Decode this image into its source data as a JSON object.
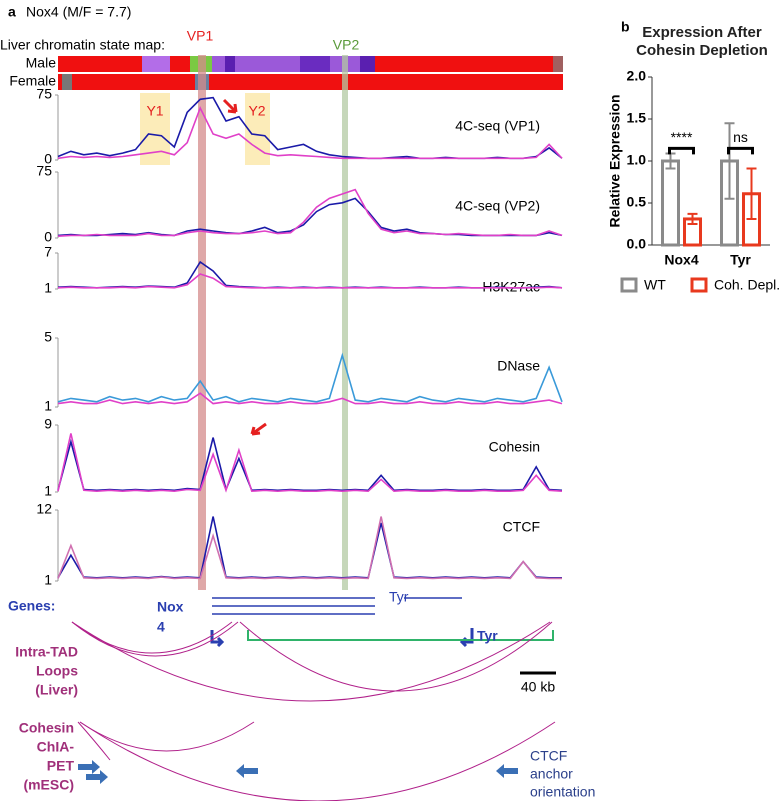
{
  "chart_data": [
    {
      "type": "line",
      "title": "4C-seq (VP1)",
      "ylim": [
        0,
        75
      ],
      "yticks": [
        0,
        75
      ],
      "series": [
        {
          "color": "#1a1aa8",
          "values": [
            4,
            10,
            6,
            8,
            5,
            8,
            12,
            30,
            28,
            15,
            55,
            70,
            72,
            45,
            50,
            30,
            28,
            12,
            15,
            18,
            10,
            6,
            4,
            3,
            2,
            2,
            3,
            4,
            2,
            2,
            3,
            2,
            2,
            2,
            3,
            2,
            2,
            4,
            14,
            2
          ]
        },
        {
          "color": "#e040c8",
          "values": [
            2,
            4,
            3,
            4,
            3,
            4,
            6,
            8,
            10,
            6,
            20,
            60,
            30,
            25,
            30,
            18,
            8,
            5,
            6,
            5,
            4,
            3,
            2,
            2,
            2,
            2,
            2,
            2,
            2,
            2,
            2,
            2,
            2,
            2,
            2,
            2,
            2,
            3,
            18,
            2
          ]
        }
      ]
    },
    {
      "type": "line",
      "title": "4C-seq (VP2)",
      "ylim": [
        0,
        75
      ],
      "yticks": [
        0,
        75
      ],
      "series": [
        {
          "color": "#1a1aa8",
          "values": [
            3,
            4,
            3,
            3,
            4,
            5,
            4,
            6,
            4,
            3,
            8,
            10,
            8,
            6,
            5,
            8,
            12,
            6,
            8,
            15,
            30,
            38,
            40,
            45,
            30,
            12,
            8,
            10,
            6,
            5,
            4,
            4,
            3,
            3,
            3,
            3,
            3,
            3,
            6,
            3
          ]
        },
        {
          "color": "#e040c8",
          "values": [
            2,
            3,
            3,
            4,
            3,
            3,
            3,
            5,
            3,
            3,
            6,
            8,
            6,
            5,
            5,
            6,
            8,
            5,
            6,
            18,
            35,
            45,
            50,
            55,
            28,
            10,
            6,
            8,
            5,
            5,
            4,
            5,
            4,
            3,
            3,
            4,
            3,
            3,
            8,
            3
          ]
        }
      ]
    },
    {
      "type": "line",
      "title": "H3K27ac",
      "ylim": [
        1,
        7
      ],
      "yticks": [
        1,
        7
      ],
      "series": [
        {
          "color": "#1a1aa8",
          "values": [
            1.3,
            1.4,
            1.3,
            1.2,
            1.3,
            1.4,
            1.3,
            1.5,
            1.4,
            1.3,
            2.0,
            5.5,
            4.0,
            1.6,
            1.4,
            1.3,
            1.2,
            1.3,
            1.2,
            1.3,
            1.2,
            1.3,
            1.2,
            1.3,
            1.2,
            1.3,
            1.2,
            1.2,
            1.3,
            1.2,
            1.2,
            1.3,
            1.2,
            1.2,
            1.3,
            1.2,
            1.2,
            1.3,
            1.4,
            1.2
          ]
        },
        {
          "color": "#e040c8",
          "values": [
            1.2,
            1.3,
            1.2,
            1.2,
            1.2,
            1.3,
            1.2,
            1.4,
            1.3,
            1.2,
            1.7,
            3.5,
            2.8,
            1.4,
            1.3,
            1.2,
            1.2,
            1.2,
            1.2,
            1.2,
            1.2,
            1.2,
            1.2,
            1.2,
            1.2,
            1.2,
            1.2,
            1.2,
            1.2,
            1.2,
            1.2,
            1.2,
            1.2,
            1.2,
            1.2,
            1.2,
            1.2,
            1.2,
            1.3,
            1.2
          ]
        }
      ]
    },
    {
      "type": "line",
      "title": "DNase",
      "ylim": [
        1,
        5
      ],
      "yticks": [
        1,
        5
      ],
      "series": [
        {
          "color": "#3a9ad9",
          "values": [
            1.3,
            1.5,
            1.4,
            1.3,
            1.6,
            1.4,
            1.5,
            1.3,
            1.6,
            1.4,
            1.5,
            2.5,
            1.4,
            1.6,
            1.3,
            1.5,
            1.4,
            1.3,
            1.5,
            1.4,
            1.3,
            1.5,
            4.0,
            1.4,
            1.3,
            1.5,
            1.4,
            1.3,
            1.6,
            1.4,
            1.3,
            1.5,
            1.4,
            1.3,
            1.5,
            1.4,
            1.3,
            1.5,
            3.3,
            1.3
          ]
        },
        {
          "color": "#e040c8",
          "values": [
            1.2,
            1.3,
            1.2,
            1.2,
            1.4,
            1.2,
            1.3,
            1.2,
            1.3,
            1.2,
            1.3,
            1.8,
            1.2,
            1.3,
            1.2,
            1.3,
            1.2,
            1.2,
            1.3,
            1.2,
            1.2,
            1.3,
            1.5,
            1.2,
            1.2,
            1.3,
            1.2,
            1.2,
            1.3,
            1.2,
            1.2,
            1.3,
            1.2,
            1.2,
            1.3,
            1.2,
            1.2,
            1.3,
            1.4,
            1.2
          ]
        }
      ]
    },
    {
      "type": "line",
      "title": "Cohesin",
      "ylim": [
        1,
        9
      ],
      "yticks": [
        1,
        9
      ],
      "series": [
        {
          "color": "#1a1aa8",
          "values": [
            1.2,
            7.0,
            1.3,
            1.2,
            1.3,
            1.2,
            1.3,
            1.2,
            1.3,
            1.2,
            1.4,
            1.3,
            7.5,
            1.3,
            5.0,
            1.2,
            1.3,
            1.2,
            1.3,
            1.2,
            1.2,
            1.3,
            1.2,
            1.3,
            1.2,
            3.0,
            1.2,
            1.3,
            1.2,
            1.2,
            1.3,
            1.2,
            1.2,
            1.3,
            1.2,
            1.2,
            1.3,
            4.0,
            1.3,
            1.2
          ]
        },
        {
          "color": "#e040c8",
          "values": [
            1.1,
            8.0,
            1.2,
            1.1,
            1.2,
            1.1,
            1.2,
            1.1,
            1.2,
            1.1,
            1.3,
            1.2,
            5.5,
            1.2,
            6.0,
            1.1,
            1.2,
            1.1,
            1.2,
            1.1,
            1.1,
            1.2,
            1.1,
            1.2,
            1.1,
            2.5,
            1.1,
            1.2,
            1.1,
            1.1,
            1.2,
            1.1,
            1.1,
            1.2,
            1.1,
            1.1,
            1.2,
            3.0,
            1.2,
            1.1
          ]
        }
      ]
    },
    {
      "type": "line",
      "title": "CTCF",
      "ylim": [
        1,
        12
      ],
      "yticks": [
        1,
        12
      ],
      "series": [
        {
          "color": "#1a1aa8",
          "values": [
            1.5,
            5.0,
            1.6,
            1.5,
            1.6,
            1.5,
            1.6,
            1.5,
            1.7,
            1.5,
            1.6,
            1.5,
            11.0,
            1.6,
            1.5,
            1.6,
            1.5,
            1.6,
            1.5,
            1.6,
            1.5,
            1.6,
            1.5,
            1.6,
            1.5,
            10.0,
            1.6,
            1.5,
            1.6,
            1.5,
            1.6,
            1.5,
            1.6,
            1.5,
            1.6,
            1.5,
            4.0,
            1.6,
            1.5,
            1.5
          ]
        },
        {
          "color": "#d070b0",
          "values": [
            1.4,
            6.5,
            1.5,
            1.4,
            1.5,
            1.4,
            1.5,
            1.4,
            1.6,
            1.4,
            1.5,
            1.4,
            8.0,
            1.5,
            1.4,
            1.5,
            1.4,
            1.5,
            1.4,
            1.5,
            1.4,
            1.5,
            1.4,
            1.5,
            1.4,
            11.0,
            1.5,
            1.4,
            1.5,
            1.4,
            1.5,
            1.4,
            1.5,
            1.4,
            1.5,
            1.4,
            4.0,
            1.5,
            1.4,
            1.4
          ]
        }
      ]
    },
    {
      "type": "bar",
      "title": "Expression After Cohesin Depletion",
      "ylabel": "Relative Expression",
      "categories": [
        "Nox4",
        "Tyr"
      ],
      "series": [
        {
          "name": "WT",
          "color": "#8a8a8a",
          "values": [
            1.0,
            1.0
          ],
          "errors": [
            0.09,
            0.45
          ]
        },
        {
          "name": "Coh. Depl.",
          "color": "#e8391e",
          "values": [
            0.31,
            0.61
          ],
          "errors": [
            0.06,
            0.3
          ]
        }
      ],
      "ylim": [
        0,
        2
      ],
      "yticks": [
        {
          "value": 0,
          "label": "0.0"
        },
        0.5,
        {
          "value": 1,
          "label": "1.0"
        },
        1.5,
        {
          "value": 2,
          "label": "2.0"
        }
      ],
      "significance": [
        "****",
        "ns"
      ]
    }
  ],
  "diagram": {
    "panel_a": "a",
    "panel_b": "b",
    "heading": "Nox4 (M/F = 7.7)",
    "chromatin_label": "Liver chromatin state map:",
    "male": "Male",
    "female": "Female",
    "vp1": "VP1",
    "vp2": "VP2",
    "y1": "Y1",
    "y2": "Y2",
    "genes": "Genes:",
    "nox4_lines": [
      "Nox",
      "4"
    ],
    "tyr_small": "Tyr",
    "tyr": "Tyr",
    "loops_lines": [
      "Intra-TAD",
      "Loops",
      "(Liver)"
    ],
    "chia_lines": [
      "Cohesin",
      "ChIA-",
      "PET",
      "(mESC)"
    ],
    "scale": "40 kb",
    "ctcf_lines": [
      "CTCF",
      "anchor",
      "orientation"
    ]
  }
}
